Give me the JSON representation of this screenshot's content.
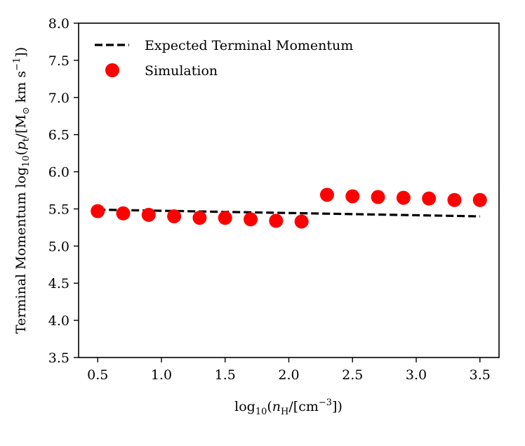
{
  "chart_data": {
    "type": "scatter",
    "title": "",
    "xlabel": "log10(nH/[cm−3])",
    "ylabel": "Terminal Momentum log10(pt/[M⊙ km s−1])",
    "xlim": [
      0.35,
      3.65
    ],
    "ylim": [
      3.5,
      8.0
    ],
    "x_ticks": [
      0.5,
      1.0,
      1.5,
      2.0,
      2.5,
      3.0,
      3.5
    ],
    "x_tick_labels": [
      "0.5",
      "1.0",
      "1.5",
      "2.0",
      "2.5",
      "3.0",
      "3.5"
    ],
    "y_ticks": [
      3.5,
      4.0,
      4.5,
      5.0,
      5.5,
      6.0,
      6.5,
      7.0,
      7.5,
      8.0
    ],
    "y_tick_labels": [
      "3.5",
      "4.0",
      "4.5",
      "5.0",
      "5.5",
      "6.0",
      "6.5",
      "7.0",
      "7.5",
      "8.0"
    ],
    "grid": false,
    "legend_position": "top-left",
    "series": [
      {
        "name": "Expected Terminal Momentum",
        "kind": "line",
        "style": "dashed",
        "color": "#000000",
        "x": [
          0.5,
          3.5
        ],
        "y": [
          5.49,
          5.4
        ]
      },
      {
        "name": "Simulation",
        "kind": "scatter",
        "color": "#ff0000",
        "x": [
          0.5,
          0.7,
          0.9,
          1.1,
          1.3,
          1.5,
          1.7,
          1.9,
          2.1,
          2.3,
          2.5,
          2.7,
          2.9,
          3.1,
          3.3,
          3.5
        ],
        "y": [
          5.47,
          5.44,
          5.42,
          5.4,
          5.38,
          5.38,
          5.36,
          5.34,
          5.33,
          5.69,
          5.67,
          5.66,
          5.65,
          5.64,
          5.62,
          5.62
        ]
      }
    ]
  }
}
